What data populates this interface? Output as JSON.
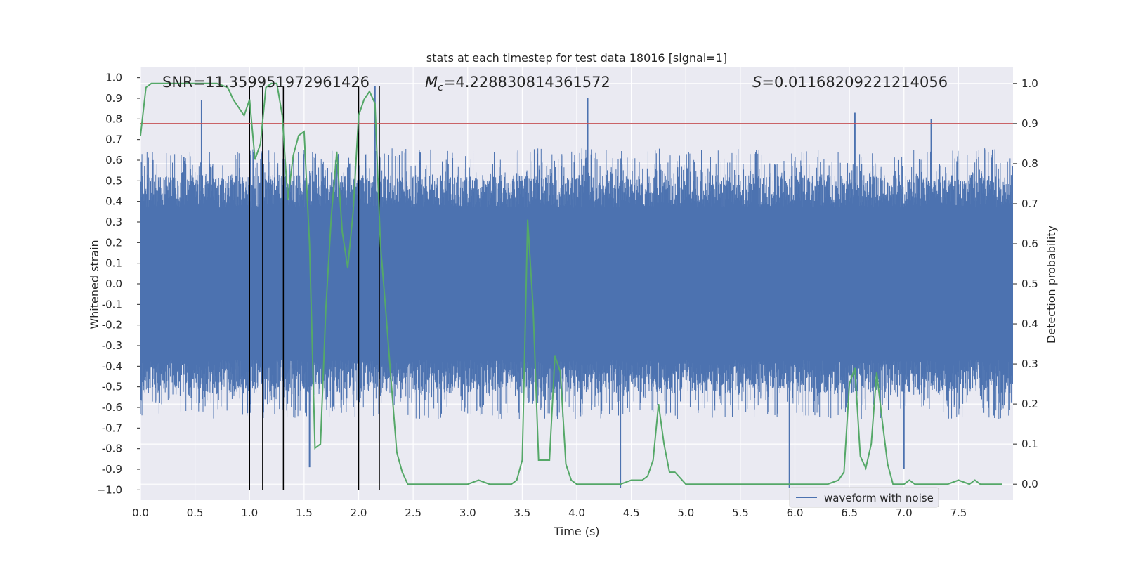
{
  "chart_data": {
    "type": "line",
    "title": "stats at each timestep for test data 18016 [signal=1]",
    "xlabel": "Time (s)",
    "ylabel": "Whitened strain",
    "y2label": "Detection probability",
    "xlim": [
      0.0,
      8.0
    ],
    "ylim": [
      -1.05,
      1.05
    ],
    "y2lim": [
      -0.04,
      1.04
    ],
    "x_ticks": [
      "0.0",
      "0.5",
      "1.0",
      "1.5",
      "2.0",
      "2.5",
      "3.0",
      "3.5",
      "4.0",
      "4.5",
      "5.0",
      "5.5",
      "6.0",
      "6.5",
      "7.0",
      "7.5"
    ],
    "x_tick_values": [
      0.0,
      0.5,
      1.0,
      1.5,
      2.0,
      2.5,
      3.0,
      3.5,
      4.0,
      4.5,
      5.0,
      5.5,
      6.0,
      6.5,
      7.0,
      7.5
    ],
    "y_ticks": [
      "1.0",
      "0.9",
      "0.8",
      "0.7",
      "0.6",
      "0.5",
      "0.4",
      "0.3",
      "0.2",
      "0.1",
      "0.0",
      "-0.1",
      "-0.2",
      "-0.3",
      "-0.4",
      "-0.5",
      "-0.6",
      "-0.7",
      "-0.8",
      "-0.9",
      "−1.0"
    ],
    "y_tick_values": [
      1.0,
      0.9,
      0.8,
      0.7,
      0.6,
      0.5,
      0.4,
      0.3,
      0.2,
      0.1,
      0.0,
      -0.1,
      -0.2,
      -0.3,
      -0.4,
      -0.5,
      -0.6,
      -0.7,
      -0.8,
      -0.9,
      -1.0
    ],
    "y2_ticks": [
      "1.0",
      "0.9",
      "0.8",
      "0.7",
      "0.6",
      "0.5",
      "0.4",
      "0.3",
      "0.2",
      "0.1",
      "0.0"
    ],
    "y2_tick_values": [
      1.0,
      0.9,
      0.8,
      0.7,
      0.6,
      0.5,
      0.4,
      0.3,
      0.2,
      0.1,
      0.0
    ],
    "annotations": {
      "snr": "SNR=11.359951972961426",
      "mc_symbol": "M",
      "mc_sub": "c",
      "mc_value": "=4.228830814361572",
      "s_symbol": "S",
      "s_value": "=0.011682092212140​56"
    },
    "annotation_text": {
      "snr": "SNR=11.359951972961426",
      "mc": "=4.228830814361572",
      "s": "=0.01168209221214056"
    },
    "legend": {
      "label": "waveform with noise",
      "location": "lower-right"
    },
    "threshold": {
      "value": 0.9,
      "axis": "y2",
      "color": "#c44e52"
    },
    "vertical_markers": [
      1.0,
      1.12,
      1.31,
      2.0,
      2.19
    ],
    "marker_ylim": [
      -1.0,
      0.96
    ],
    "waveform": {
      "name": "waveform with noise",
      "color": "#4c72b0",
      "core_amplitude": 0.37,
      "typical_peak": 0.6,
      "max_abs": 1.0,
      "notable_peaks": [
        [
          0.56,
          0.89
        ],
        [
          4.1,
          0.9
        ],
        [
          6.55,
          0.83
        ],
        [
          7.25,
          0.8
        ],
        [
          2.15,
          0.96
        ],
        [
          4.4,
          -0.99
        ],
        [
          5.95,
          -0.99
        ],
        [
          7.0,
          -0.9
        ],
        [
          1.55,
          -0.89
        ]
      ]
    },
    "probability": {
      "name": "detection probability",
      "color": "#55a868",
      "x": [
        0.0,
        0.05,
        0.1,
        0.15,
        0.2,
        0.3,
        0.4,
        0.5,
        0.6,
        0.7,
        0.8,
        0.85,
        0.9,
        0.95,
        1.0,
        1.05,
        1.1,
        1.15,
        1.2,
        1.25,
        1.3,
        1.35,
        1.4,
        1.45,
        1.5,
        1.55,
        1.6,
        1.65,
        1.7,
        1.75,
        1.8,
        1.85,
        1.9,
        1.95,
        2.0,
        2.05,
        2.1,
        2.15,
        2.2,
        2.25,
        2.3,
        2.35,
        2.4,
        2.45,
        2.5,
        2.6,
        2.7,
        2.8,
        2.9,
        3.0,
        3.1,
        3.2,
        3.3,
        3.4,
        3.45,
        3.5,
        3.55,
        3.6,
        3.65,
        3.7,
        3.75,
        3.8,
        3.85,
        3.9,
        3.95,
        4.0,
        4.1,
        4.2,
        4.3,
        4.4,
        4.5,
        4.6,
        4.65,
        4.7,
        4.75,
        4.8,
        4.85,
        4.9,
        5.0,
        5.1,
        5.3,
        5.5,
        5.7,
        5.9,
        6.1,
        6.2,
        6.3,
        6.4,
        6.45,
        6.5,
        6.55,
        6.6,
        6.65,
        6.7,
        6.75,
        6.8,
        6.85,
        6.9,
        7.0,
        7.05,
        7.1,
        7.2,
        7.3,
        7.4,
        7.5,
        7.6,
        7.65,
        7.7,
        7.8,
        7.9
      ],
      "y": [
        0.87,
        0.99,
        1.0,
        1.0,
        1.0,
        1.0,
        1.0,
        1.0,
        1.0,
        1.0,
        0.99,
        0.96,
        0.94,
        0.92,
        0.96,
        0.81,
        0.85,
        0.99,
        1.0,
        1.0,
        0.92,
        0.71,
        0.82,
        0.87,
        0.88,
        0.6,
        0.09,
        0.1,
        0.44,
        0.67,
        0.83,
        0.63,
        0.54,
        0.68,
        0.92,
        0.96,
        0.98,
        0.95,
        0.6,
        0.43,
        0.25,
        0.08,
        0.03,
        0.0,
        0.0,
        0.0,
        0.0,
        0.0,
        0.0,
        0.0,
        0.01,
        0.0,
        0.0,
        0.0,
        0.01,
        0.06,
        0.66,
        0.44,
        0.06,
        0.06,
        0.06,
        0.32,
        0.28,
        0.05,
        0.01,
        0.0,
        0.0,
        0.0,
        0.0,
        0.0,
        0.01,
        0.01,
        0.02,
        0.06,
        0.2,
        0.1,
        0.03,
        0.03,
        0.0,
        0.0,
        0.0,
        0.0,
        0.0,
        0.0,
        0.0,
        0.0,
        0.0,
        0.01,
        0.03,
        0.25,
        0.29,
        0.07,
        0.04,
        0.1,
        0.28,
        0.16,
        0.05,
        0.0,
        0.0,
        0.01,
        0.0,
        0.0,
        0.0,
        0.0,
        0.01,
        0.0,
        0.01,
        0.0,
        0.0,
        0.0
      ]
    }
  }
}
